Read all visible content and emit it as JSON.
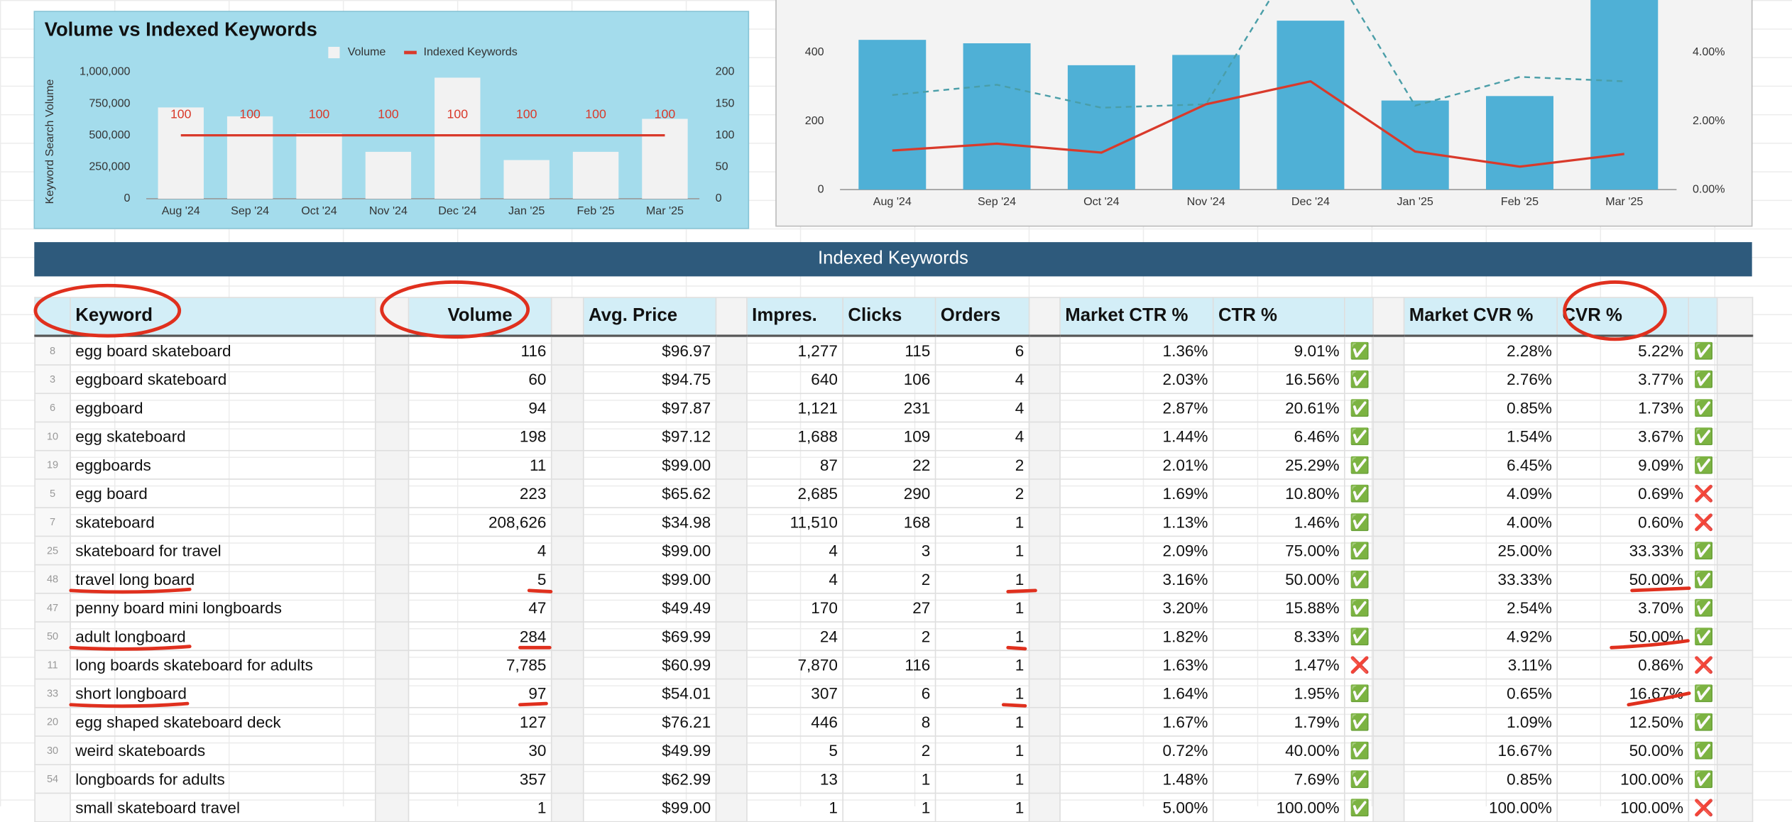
{
  "chart_data": [
    {
      "type": "combo",
      "title": "Volume vs Indexed Keywords",
      "ylabel": "Keyword Search Volume",
      "legend": "top",
      "categories": [
        "Aug '24",
        "Sep '24",
        "Oct '24",
        "Nov '24",
        "Dec '24",
        "Jan '25",
        "Feb '25",
        "Mar '25"
      ],
      "series": [
        {
          "name": "Volume",
          "type": "bar",
          "color": "#f2f2f2",
          "values": [
            720000,
            650000,
            515000,
            370000,
            955000,
            305000,
            370000,
            630000
          ]
        },
        {
          "name": "Indexed Keywords",
          "type": "line",
          "axis": "y2",
          "color": "#d93a2b",
          "data_labels": true,
          "values": [
            100,
            100,
            100,
            100,
            100,
            100,
            100,
            100
          ]
        }
      ],
      "ylim": [
        0,
        1000000
      ],
      "yticks": [
        0,
        {
          "value": 250000,
          "label": "250,000"
        },
        {
          "value": 500000,
          "label": "500,000"
        },
        {
          "value": 750000,
          "label": "750,000"
        },
        {
          "value": 1000000,
          "label": "1,000,000"
        }
      ],
      "y2lim": [
        0,
        200
      ],
      "y2ticks": [
        0,
        50,
        100,
        150,
        200
      ],
      "grid": false
    },
    {
      "type": "combo",
      "categories": [
        "Aug '24",
        "Sep '24",
        "Oct '24",
        "Nov '24",
        "Dec '24",
        "Jan '25",
        "Feb '25",
        "Mar '25"
      ],
      "series": [
        {
          "type": "bar",
          "color": "#4fb0d6",
          "values": [
            437,
            427,
            363,
            393,
            493,
            260,
            273,
            600
          ]
        },
        {
          "type": "line",
          "axis": "y2",
          "color": "#4a9ea8",
          "dashed": true,
          "values": [
            2.76,
            3.06,
            2.39,
            2.49,
            7.5,
            2.45,
            3.29,
            3.16
          ]
        },
        {
          "type": "line",
          "axis": "y2",
          "color": "#d93a2b",
          "values": [
            1.14,
            1.34,
            1.08,
            2.49,
            3.16,
            1.11,
            0.67,
            1.04
          ]
        }
      ],
      "ylim": [
        0,
        600
      ],
      "yticks": [
        0,
        200,
        400
      ],
      "y2lim": [
        0,
        6
      ],
      "y2ticks": [
        {
          "value": 0,
          "label": "0.00%"
        },
        {
          "value": 2,
          "label": "2.00%"
        },
        {
          "value": 4,
          "label": "4.00%"
        }
      ],
      "grid": false
    }
  ],
  "table": {
    "title": "Indexed Keywords",
    "headers": [
      "Keyword",
      "Volume",
      "Avg. Price",
      "Impres.",
      "Clicks",
      "Orders",
      "Market CTR %",
      "CTR %",
      "Market CVR %",
      "CVR %"
    ],
    "rows": [
      [
        "8",
        "egg board skateboard",
        "116",
        "$96.97",
        "1,277",
        "115",
        "6",
        "1.36%",
        "9.01%",
        "✅",
        "2.28%",
        "5.22%",
        "✅"
      ],
      [
        "3",
        "eggboard skateboard",
        "60",
        "$94.75",
        "640",
        "106",
        "4",
        "2.03%",
        "16.56%",
        "✅",
        "2.76%",
        "3.77%",
        "✅"
      ],
      [
        "6",
        "eggboard",
        "94",
        "$97.87",
        "1,121",
        "231",
        "4",
        "2.87%",
        "20.61%",
        "✅",
        "0.85%",
        "1.73%",
        "✅"
      ],
      [
        "10",
        "egg skateboard",
        "198",
        "$97.12",
        "1,688",
        "109",
        "4",
        "1.44%",
        "6.46%",
        "✅",
        "1.54%",
        "3.67%",
        "✅"
      ],
      [
        "19",
        "eggboards",
        "11",
        "$99.00",
        "87",
        "22",
        "2",
        "2.01%",
        "25.29%",
        "✅",
        "6.45%",
        "9.09%",
        "✅"
      ],
      [
        "5",
        "egg board",
        "223",
        "$65.62",
        "2,685",
        "290",
        "2",
        "1.69%",
        "10.80%",
        "✅",
        "4.09%",
        "0.69%",
        "❌"
      ],
      [
        "7",
        "skateboard",
        "208,626",
        "$34.98",
        "11,510",
        "168",
        "1",
        "1.13%",
        "1.46%",
        "✅",
        "4.00%",
        "0.60%",
        "❌"
      ],
      [
        "25",
        "skateboard for travel",
        "4",
        "$99.00",
        "4",
        "3",
        "1",
        "2.09%",
        "75.00%",
        "✅",
        "25.00%",
        "33.33%",
        "✅"
      ],
      [
        "48",
        "travel long board",
        "5",
        "$99.00",
        "4",
        "2",
        "1",
        "3.16%",
        "50.00%",
        "✅",
        "33.33%",
        "50.00%",
        "✅"
      ],
      [
        "47",
        "penny board mini longboards",
        "47",
        "$49.49",
        "170",
        "27",
        "1",
        "3.20%",
        "15.88%",
        "✅",
        "2.54%",
        "3.70%",
        "✅"
      ],
      [
        "50",
        "adult longboard",
        "284",
        "$69.99",
        "24",
        "2",
        "1",
        "1.82%",
        "8.33%",
        "✅",
        "4.92%",
        "50.00%",
        "✅"
      ],
      [
        "11",
        "long boards skateboard for adults",
        "7,785",
        "$60.99",
        "7,870",
        "116",
        "1",
        "1.63%",
        "1.47%",
        "❌",
        "3.11%",
        "0.86%",
        "❌"
      ],
      [
        "33",
        "short longboard",
        "97",
        "$54.01",
        "307",
        "6",
        "1",
        "1.64%",
        "1.95%",
        "✅",
        "0.65%",
        "16.67%",
        "✅"
      ],
      [
        "20",
        "egg shaped skateboard deck",
        "127",
        "$76.21",
        "446",
        "8",
        "1",
        "1.67%",
        "1.79%",
        "✅",
        "1.09%",
        "12.50%",
        "✅"
      ],
      [
        "30",
        "weird skateboards",
        "30",
        "$49.99",
        "5",
        "2",
        "1",
        "0.72%",
        "40.00%",
        "✅",
        "16.67%",
        "50.00%",
        "✅"
      ],
      [
        "54",
        "longboards for adults",
        "357",
        "$62.99",
        "13",
        "1",
        "1",
        "1.48%",
        "7.69%",
        "✅",
        "0.85%",
        "100.00%",
        "✅"
      ],
      [
        null,
        "small skateboard travel",
        "1",
        "$99.00",
        "1",
        "1",
        "1",
        "5.00%",
        "100.00%",
        "✅",
        "100.00%",
        "100.00%",
        "❌"
      ]
    ]
  }
}
